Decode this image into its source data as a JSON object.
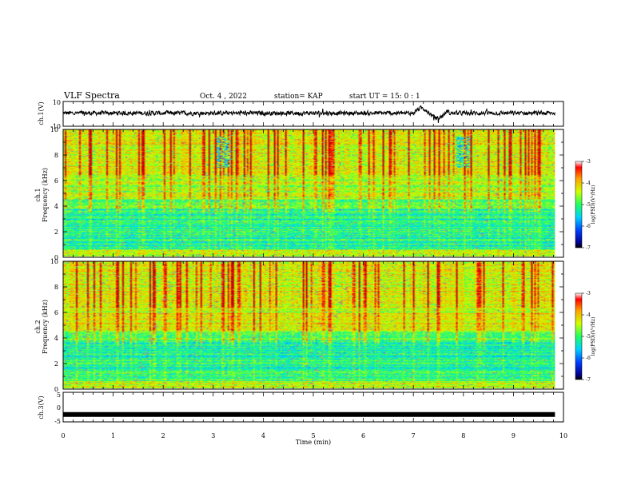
{
  "header": {
    "title": "VLF Spectra",
    "date": "Oct. 4 , 2022",
    "station": "station= KAP",
    "start": "start  UT =  15: 0  : 1"
  },
  "chart_data": [
    {
      "type": "line",
      "panel": "ch1-waveform",
      "ylabel": "ch.1(V)",
      "ylim": [
        -10,
        10
      ],
      "yticks": [
        "10",
        "-10"
      ],
      "xlim": [
        0,
        10
      ],
      "xticks": [
        0,
        1,
        2,
        3,
        4,
        5,
        6,
        7,
        8,
        9,
        10
      ],
      "data_extent_min": 9.83,
      "notes": "noisy waveform around 0 V, amplitude ~±3 V, larger excursion near 7.0–7.7 min"
    },
    {
      "type": "heatmap",
      "panel": "ch1-spectrogram",
      "ylabel": "ch.1\nFrequency  (kHz)",
      "ylim": [
        0,
        10
      ],
      "yticks": [
        "0",
        "2",
        "4",
        "6",
        "8",
        "10"
      ],
      "xlim": [
        0,
        10
      ],
      "data_extent_min": 9.83,
      "colorbar": {
        "label": "log(PSD)(V²/Hz)",
        "range": [
          -7,
          -3
        ],
        "ticks": [
          "-3",
          "-4",
          "-5",
          "-6",
          "-7"
        ]
      }
    },
    {
      "type": "heatmap",
      "panel": "ch2-spectrogram",
      "ylabel": "ch.2\nFrequency  (kHz)",
      "ylim": [
        0,
        10
      ],
      "yticks": [
        "0",
        "2",
        "4",
        "6",
        "8",
        "10"
      ],
      "xlim": [
        0,
        10
      ],
      "data_extent_min": 9.83,
      "colorbar": {
        "label": "log(PSD)(V²/Hz)",
        "range": [
          -7,
          -3
        ],
        "ticks": [
          "-3",
          "-4",
          "-5",
          "-6",
          "-7"
        ]
      }
    },
    {
      "type": "line",
      "panel": "ch3-waveform",
      "ylabel": "ch.3(V)",
      "ylim": [
        -5,
        5
      ],
      "yticks": [
        "5",
        "0",
        "-5"
      ],
      "xlim": [
        0,
        10
      ],
      "data_extent_min": 9.83,
      "notes": "thick near-constant trace at about -2.5 V"
    }
  ],
  "xaxis": {
    "label": "Time  (min)",
    "ticks": [
      "0",
      "1",
      "2",
      "3",
      "4",
      "5",
      "6",
      "7",
      "8",
      "9",
      "10"
    ]
  }
}
